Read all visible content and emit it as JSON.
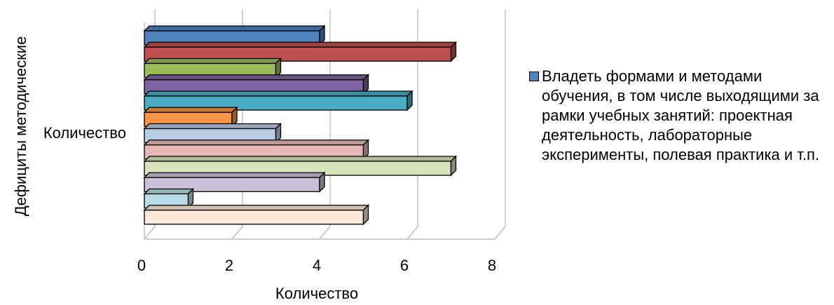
{
  "chart_data": {
    "type": "bar",
    "orientation": "horizontal",
    "style": "3d",
    "categories": [
      "Количество"
    ],
    "xlabel": "Количество",
    "ylabel": "Дефициты методические",
    "xlim": [
      0,
      8
    ],
    "xticks": [
      "0",
      "2",
      "4",
      "6",
      "8"
    ],
    "grid": true,
    "legend_position": "right",
    "series": [
      {
        "name": "Владеть формами и методами обучения, в том числе выходящими за рамки учебных занятий: проектная деятельность, лабораторные эксперименты, полевая практика и т.п.",
        "values": [
          4
        ],
        "color": "#4F81BD"
      },
      {
        "values": [
          7
        ],
        "color": "#C0504D"
      },
      {
        "values": [
          3
        ],
        "color": "#9BBB59"
      },
      {
        "values": [
          5
        ],
        "color": "#8064A2"
      },
      {
        "values": [
          6
        ],
        "color": "#4BACC6"
      },
      {
        "values": [
          2
        ],
        "color": "#F79646"
      },
      {
        "values": [
          3
        ],
        "color": "#B9CDE5"
      },
      {
        "values": [
          5
        ],
        "color": "#E6B9B8"
      },
      {
        "values": [
          7
        ],
        "color": "#D7E4BD"
      },
      {
        "values": [
          4
        ],
        "color": "#CCC1DA"
      },
      {
        "values": [
          1
        ],
        "color": "#B7DEE8"
      },
      {
        "values": [
          5
        ],
        "color": "#FDE9D9"
      }
    ]
  }
}
